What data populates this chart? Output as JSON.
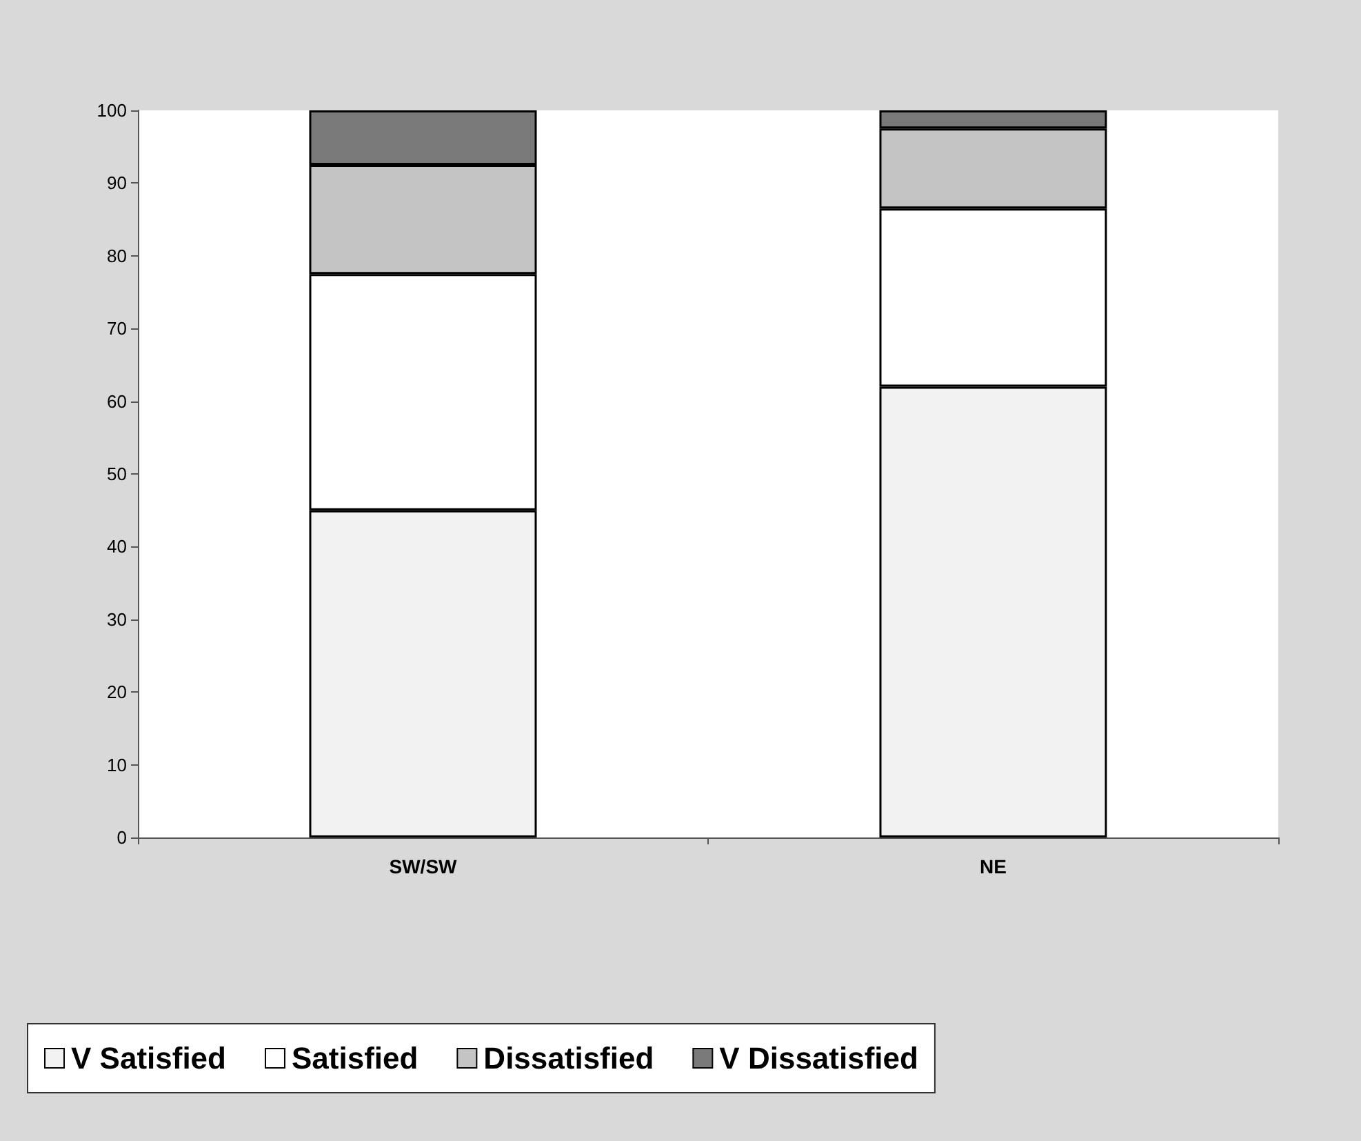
{
  "chart_data": {
    "type": "bar",
    "stacked": true,
    "categories": [
      "SW/SW",
      "NE"
    ],
    "series": [
      {
        "name": "V Satisfied",
        "color": "#f2f2f2",
        "values": [
          45,
          62
        ]
      },
      {
        "name": "Satisfied",
        "color": "#ffffff",
        "values": [
          32.5,
          24.5
        ]
      },
      {
        "name": "Dissatisfied",
        "color": "#c4c4c4",
        "values": [
          15,
          11
        ]
      },
      {
        "name": "V Dissatisfied",
        "color": "#7a7a7a",
        "values": [
          7.5,
          2.5
        ]
      }
    ],
    "ylim": [
      0,
      100
    ],
    "yticks": [
      0,
      10,
      20,
      30,
      40,
      50,
      60,
      70,
      80,
      90,
      100
    ],
    "grid": false,
    "legend": "bottom"
  }
}
